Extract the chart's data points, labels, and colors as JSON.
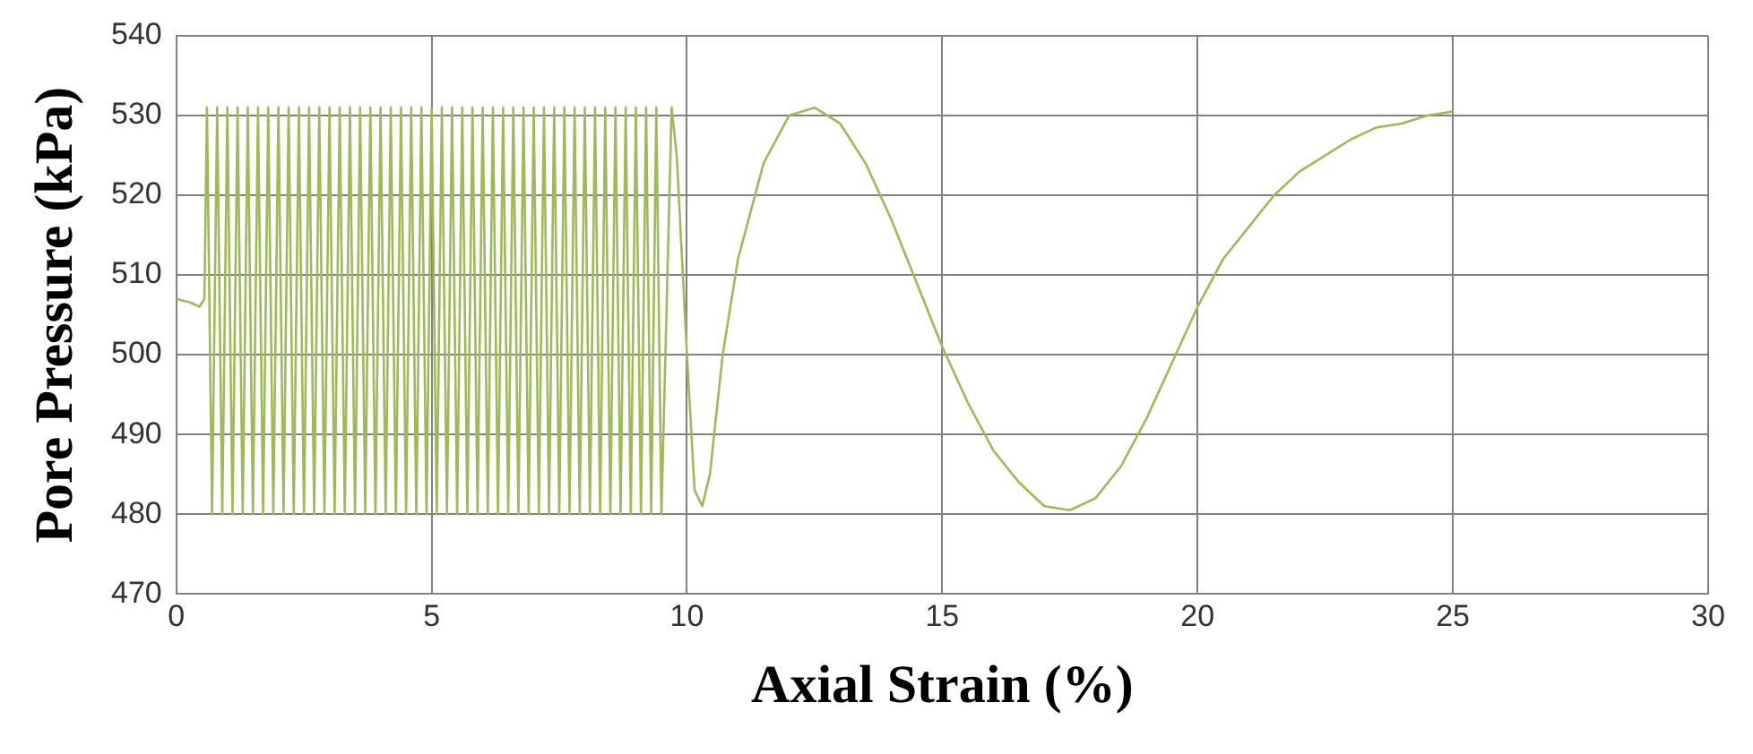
{
  "chart_data": {
    "type": "line",
    "xlabel": "Axial Strain (%)",
    "ylabel": "Pore Pressure (kPa)",
    "xlim": [
      0,
      30
    ],
    "xticks": [
      0,
      5,
      10,
      15,
      20,
      25,
      30
    ],
    "ylim": [
      470,
      540
    ],
    "yticks": [
      470,
      480,
      490,
      500,
      510,
      520,
      530,
      540
    ],
    "grid": true,
    "legend": false,
    "marker": "none",
    "line_style": "solid",
    "series": [
      {
        "color": "#9bbb59",
        "x": [
          0,
          0.3,
          0.45,
          0.55,
          0.6,
          0.7,
          0.8,
          0.9,
          1,
          1.1,
          1.2,
          1.3,
          1.4,
          1.5,
          1.6,
          1.7,
          1.8,
          1.9,
          2,
          2.1,
          2.2,
          2.3,
          2.4,
          2.5,
          2.6,
          2.7,
          2.8,
          2.9,
          3,
          3.1,
          3.2,
          3.3,
          3.4,
          3.5,
          3.6,
          3.7,
          3.8,
          3.9,
          4,
          4.1,
          4.2,
          4.3,
          4.4,
          4.5,
          4.6,
          4.7,
          4.8,
          4.9,
          5,
          5.1,
          5.2,
          5.3,
          5.4,
          5.5,
          5.6,
          5.7,
          5.8,
          5.9,
          6,
          6.1,
          6.2,
          6.3,
          6.4,
          6.5,
          6.6,
          6.7,
          6.8,
          6.9,
          7,
          7.1,
          7.2,
          7.3,
          7.4,
          7.5,
          7.6,
          7.7,
          7.8,
          7.9,
          8,
          8.1,
          8.2,
          8.3,
          8.4,
          8.5,
          8.6,
          8.7,
          8.8,
          8.9,
          9,
          9.1,
          9.2,
          9.3,
          9.4,
          9.5,
          9.7,
          9.8,
          10,
          10.15,
          10.3,
          10.45,
          10.7,
          11,
          11.5,
          12,
          12.5,
          13,
          13.5,
          14,
          14.5,
          15,
          15.5,
          16,
          16.5,
          17,
          17.5,
          18,
          18.5,
          19,
          19.5,
          20,
          20.5,
          21,
          21.5,
          22,
          22.5,
          23,
          23.5,
          24,
          24.5,
          25
        ],
        "values": [
          507,
          506.5,
          506,
          507,
          531,
          480,
          531,
          480,
          531,
          480,
          531,
          480,
          531,
          480,
          531,
          480,
          531,
          480,
          531,
          480,
          531,
          480,
          531,
          480,
          531,
          480,
          531,
          480,
          531,
          480,
          531,
          480,
          531,
          480,
          531,
          480,
          531,
          480,
          531,
          480,
          531,
          480,
          531,
          480,
          531,
          480,
          531,
          480,
          531,
          480,
          531,
          480,
          531,
          480,
          531,
          480,
          531,
          480,
          531,
          480,
          531,
          480,
          531,
          480,
          531,
          480,
          531,
          480,
          531,
          480,
          531,
          480,
          531,
          480,
          531,
          480,
          531,
          480,
          531,
          480,
          531,
          480,
          531,
          480,
          531,
          480,
          531,
          480,
          531,
          480,
          531,
          480,
          531,
          480,
          531,
          525,
          500,
          483,
          481,
          485,
          500,
          512,
          524,
          530,
          531,
          529,
          524,
          517,
          509,
          501,
          494,
          488,
          484,
          481,
          480.5,
          482,
          486,
          492,
          499,
          506,
          512,
          516,
          520,
          523,
          525,
          527,
          528.5,
          529,
          530,
          530.5
        ]
      }
    ]
  }
}
